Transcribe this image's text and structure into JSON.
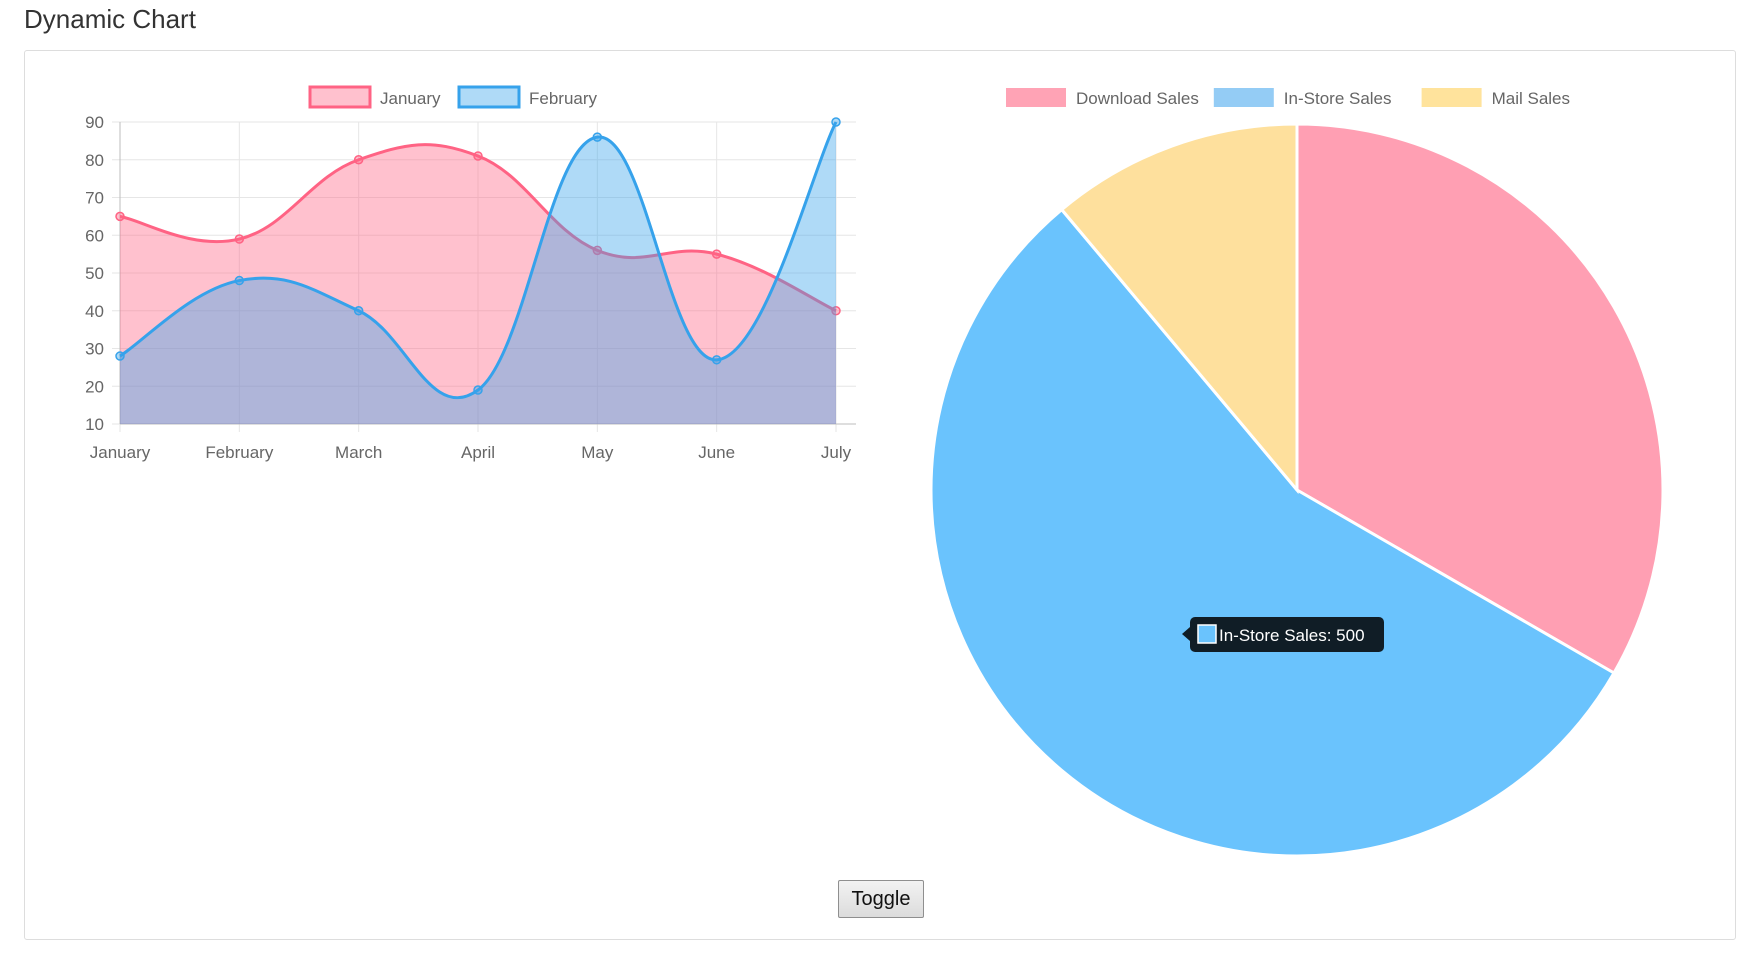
{
  "page": {
    "title": "Dynamic Chart"
  },
  "controls": {
    "toggle_label": "Toggle"
  },
  "chart_data": [
    {
      "type": "area",
      "categories": [
        "January",
        "February",
        "March",
        "April",
        "May",
        "June",
        "July"
      ],
      "series": [
        {
          "name": "January",
          "values": [
            65,
            59,
            80,
            81,
            56,
            55,
            40
          ],
          "color": "#ff6384",
          "fill": "rgba(255,99,132,0.4)"
        },
        {
          "name": "February",
          "values": [
            28,
            48,
            40,
            19,
            86,
            27,
            90
          ],
          "color": "#36a2eb",
          "fill": "rgba(54,162,235,0.4)"
        }
      ],
      "yticks": [
        10,
        20,
        30,
        40,
        50,
        60,
        70,
        80,
        90
      ],
      "ylim": [
        10,
        90
      ],
      "grid": true,
      "legend_position": "top",
      "smooth": true
    },
    {
      "type": "pie",
      "labels": [
        "Download Sales",
        "In-Store Sales",
        "Mail Sales"
      ],
      "values": [
        300,
        500,
        100
      ],
      "colors": [
        "#ff9fb3",
        "#6ac3fd",
        "#fee09d"
      ],
      "legend_colors": [
        "#ffa3b5",
        "#94ccf5",
        "#ffe39c"
      ],
      "legend_position": "top",
      "tooltip": {
        "label": "In-Store Sales: 500",
        "color": "#6ac3fd"
      }
    }
  ]
}
